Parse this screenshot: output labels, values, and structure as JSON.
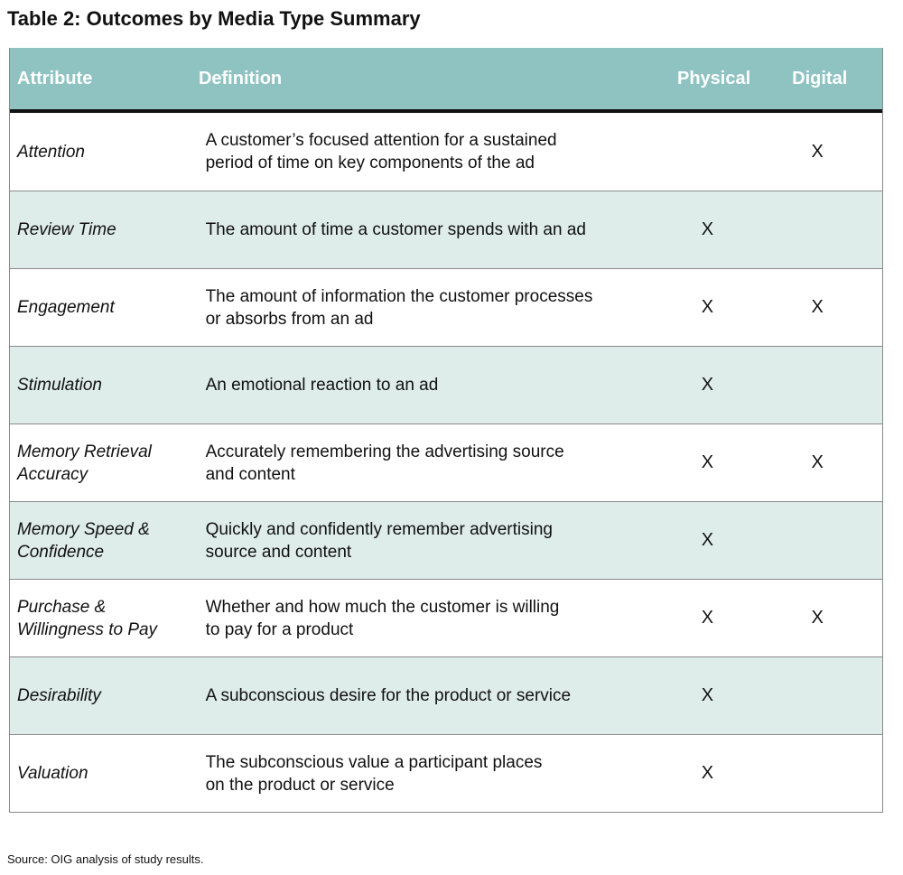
{
  "title": "Table 2: Outcomes by Media Type Summary",
  "headers": {
    "attribute": "Attribute",
    "definition": "Definition",
    "physical": "Physical",
    "digital": "Digital"
  },
  "rows": [
    {
      "attribute": [
        "Attention"
      ],
      "definition": [
        "A customer’s focused attention for a sustained",
        "period of time on key components of the ad"
      ],
      "physical": "",
      "digital": "X"
    },
    {
      "attribute": [
        "Review Time"
      ],
      "definition": [
        "The amount of time a customer spends with an ad"
      ],
      "physical": "X",
      "digital": ""
    },
    {
      "attribute": [
        "Engagement"
      ],
      "definition": [
        "The amount of information the customer processes",
        "or absorbs from an ad"
      ],
      "physical": "X",
      "digital": "X"
    },
    {
      "attribute": [
        "Stimulation"
      ],
      "definition": [
        "An emotional reaction to an ad"
      ],
      "physical": "X",
      "digital": ""
    },
    {
      "attribute": [
        "Memory Retrieval",
        "Accuracy"
      ],
      "definition": [
        "Accurately remembering the advertising source",
        "and content"
      ],
      "physical": "X",
      "digital": "X"
    },
    {
      "attribute": [
        "Memory Speed &",
        "Confidence"
      ],
      "definition": [
        "Quickly and confidently remember advertising",
        "source and content"
      ],
      "physical": "X",
      "digital": ""
    },
    {
      "attribute": [
        "Purchase &",
        "Willingness to Pay"
      ],
      "definition": [
        "Whether and how much the customer is willing",
        "to pay for a product"
      ],
      "physical": "X",
      "digital": "X"
    },
    {
      "attribute": [
        "Desirability"
      ],
      "definition": [
        "A subconscious desire for the product or service"
      ],
      "physical": "X",
      "digital": ""
    },
    {
      "attribute": [
        "Valuation"
      ],
      "definition": [
        "The subconscious value a participant places",
        "on the product or service"
      ],
      "physical": "X",
      "digital": ""
    }
  ],
  "source": "Source: OIG analysis of study results.",
  "colors": {
    "header_bg": "#8ec3c2",
    "shaded_row_bg": "#deecea",
    "header_rule": "#111111"
  }
}
